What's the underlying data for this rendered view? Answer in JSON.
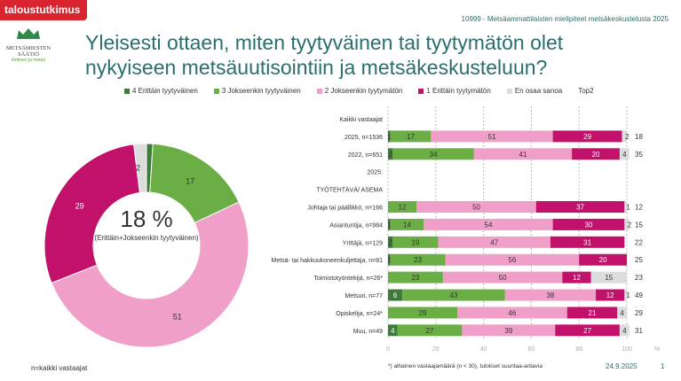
{
  "header": {
    "brand": "taloustutkimus",
    "subtitle": "10999 - Metsäammattilaisten mielipiteet metsäkeskustelusta 2025",
    "title": "Yleisesti ottaen, miten tyytyväinen tai tyytymätön olet nykyiseen metsäuutisointiin ja metsäkeskusteluun?",
    "logo_name": "METSÄMIESTEN SÄÄTIÖ",
    "logo_tagline": "ihminen ja metsä"
  },
  "footer": {
    "base": "n=kaikki vastaajat",
    "note": "*) alhainen vastaajamäärä (n < 30), tulokset suuntaa-antavia",
    "date": "24.9.2025",
    "page": "1"
  },
  "chart_data": [
    {
      "type": "pie",
      "variant": "donut",
      "categories": [
        "4 Erittäin tyytyväinen",
        "3 Jokseenkin tyytyväinen",
        "2 Jokseenkin tyytymätön",
        "1 Erittäin tyytymätön",
        "En osaa sanoa"
      ],
      "values": [
        1,
        17,
        51,
        29,
        2
      ],
      "colors": [
        "#3e7a3a",
        "#6aae45",
        "#f09fc8",
        "#c2116b",
        "#dcdcdc"
      ],
      "center_value": "18 %",
      "center_label": "(Erittäin+Jokseenkin tyytyväinen)"
    },
    {
      "type": "bar",
      "orientation": "horizontal",
      "stacked": true,
      "xlim": [
        0,
        100
      ],
      "xticks": [
        "0",
        "20",
        "40",
        "60",
        "80",
        "100"
      ],
      "xunit": "%",
      "grid": true,
      "legend_position": "top",
      "extra_column": "Top2",
      "series": [
        {
          "name": "4 Erittäin tyytyväinen",
          "color": "#3e7a3a"
        },
        {
          "name": "3 Jokseenkin tyytyväinen",
          "color": "#6aae45"
        },
        {
          "name": "2 Jokseenkin tyytymätön",
          "color": "#f09fc8"
        },
        {
          "name": "1 Erittäin tyytymätön",
          "color": "#c2116b"
        },
        {
          "name": "En osaa sanoa",
          "color": "#dcdcdc"
        }
      ],
      "rows": [
        {
          "label": "Kaikki vastaajat",
          "values": null,
          "top2": ""
        },
        {
          "label": "2025, n=1536",
          "values": [
            1,
            17,
            51,
            29,
            2
          ],
          "top2": "18"
        },
        {
          "label": "2022, n=651",
          "values": [
            2,
            34,
            41,
            20,
            4
          ],
          "top2": "35"
        },
        {
          "label": "2025:",
          "values": null,
          "top2": ""
        },
        {
          "label": "TYÖTEHTÄVÄ/ ASEMA",
          "values": null,
          "top2": ""
        },
        {
          "label": "Johtaja tai päällikkö, n=166",
          "values": [
            0,
            12,
            50,
            37,
            1
          ],
          "top2": "12"
        },
        {
          "label": "Asiantuntija, n=984",
          "values": [
            1,
            14,
            54,
            30,
            2
          ],
          "top2": "15"
        },
        {
          "label": "Yrittäjä, n=129",
          "values": [
            2,
            19,
            47,
            31,
            0
          ],
          "top2": "22"
        },
        {
          "label": "Metsä- tai hakkuukoneenkuljettaja, n=81",
          "values": [
            1,
            23,
            56,
            20,
            0
          ],
          "top2": "25"
        },
        {
          "label": "Toimistotyöntekijä, n=26*",
          "values": [
            0,
            23,
            50,
            12,
            15
          ],
          "top2": "23"
        },
        {
          "label": "Metsuri, n=77",
          "values": [
            6,
            43,
            38,
            12,
            1
          ],
          "top2": "49"
        },
        {
          "label": "Opiskelija, n=24*",
          "values": [
            0,
            29,
            46,
            21,
            4
          ],
          "top2": "29"
        },
        {
          "label": "Muu, n=49",
          "values": [
            4,
            27,
            39,
            27,
            4
          ],
          "top2": "31"
        }
      ]
    }
  ]
}
